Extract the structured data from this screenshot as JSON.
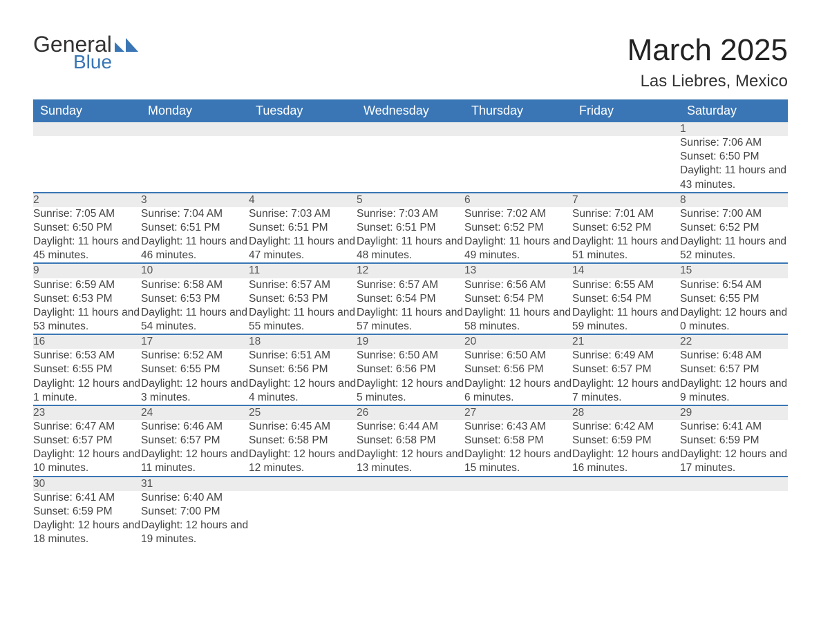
{
  "logo": {
    "text_top": "General",
    "text_bottom": "Blue"
  },
  "title": "March 2025",
  "location": "Las Liebres, Mexico",
  "colors": {
    "header_bg": "#3a76b5",
    "header_text": "#ffffff",
    "daynum_bg": "#ececec",
    "row_border": "#3a76b5",
    "text": "#444444"
  },
  "fonts": {
    "title_size": 44,
    "location_size": 24,
    "header_size": 18,
    "daynum_size": 18,
    "body_size": 15.5
  },
  "day_headers": [
    "Sunday",
    "Monday",
    "Tuesday",
    "Wednesday",
    "Thursday",
    "Friday",
    "Saturday"
  ],
  "weeks": [
    [
      null,
      null,
      null,
      null,
      null,
      null,
      {
        "n": "1",
        "sunrise": "7:06 AM",
        "sunset": "6:50 PM",
        "daylight": "11 hours and 43 minutes."
      }
    ],
    [
      {
        "n": "2",
        "sunrise": "7:05 AM",
        "sunset": "6:50 PM",
        "daylight": "11 hours and 45 minutes."
      },
      {
        "n": "3",
        "sunrise": "7:04 AM",
        "sunset": "6:51 PM",
        "daylight": "11 hours and 46 minutes."
      },
      {
        "n": "4",
        "sunrise": "7:03 AM",
        "sunset": "6:51 PM",
        "daylight": "11 hours and 47 minutes."
      },
      {
        "n": "5",
        "sunrise": "7:03 AM",
        "sunset": "6:51 PM",
        "daylight": "11 hours and 48 minutes."
      },
      {
        "n": "6",
        "sunrise": "7:02 AM",
        "sunset": "6:52 PM",
        "daylight": "11 hours and 49 minutes."
      },
      {
        "n": "7",
        "sunrise": "7:01 AM",
        "sunset": "6:52 PM",
        "daylight": "11 hours and 51 minutes."
      },
      {
        "n": "8",
        "sunrise": "7:00 AM",
        "sunset": "6:52 PM",
        "daylight": "11 hours and 52 minutes."
      }
    ],
    [
      {
        "n": "9",
        "sunrise": "6:59 AM",
        "sunset": "6:53 PM",
        "daylight": "11 hours and 53 minutes."
      },
      {
        "n": "10",
        "sunrise": "6:58 AM",
        "sunset": "6:53 PM",
        "daylight": "11 hours and 54 minutes."
      },
      {
        "n": "11",
        "sunrise": "6:57 AM",
        "sunset": "6:53 PM",
        "daylight": "11 hours and 55 minutes."
      },
      {
        "n": "12",
        "sunrise": "6:57 AM",
        "sunset": "6:54 PM",
        "daylight": "11 hours and 57 minutes."
      },
      {
        "n": "13",
        "sunrise": "6:56 AM",
        "sunset": "6:54 PM",
        "daylight": "11 hours and 58 minutes."
      },
      {
        "n": "14",
        "sunrise": "6:55 AM",
        "sunset": "6:54 PM",
        "daylight": "11 hours and 59 minutes."
      },
      {
        "n": "15",
        "sunrise": "6:54 AM",
        "sunset": "6:55 PM",
        "daylight": "12 hours and 0 minutes."
      }
    ],
    [
      {
        "n": "16",
        "sunrise": "6:53 AM",
        "sunset": "6:55 PM",
        "daylight": "12 hours and 1 minute."
      },
      {
        "n": "17",
        "sunrise": "6:52 AM",
        "sunset": "6:55 PM",
        "daylight": "12 hours and 3 minutes."
      },
      {
        "n": "18",
        "sunrise": "6:51 AM",
        "sunset": "6:56 PM",
        "daylight": "12 hours and 4 minutes."
      },
      {
        "n": "19",
        "sunrise": "6:50 AM",
        "sunset": "6:56 PM",
        "daylight": "12 hours and 5 minutes."
      },
      {
        "n": "20",
        "sunrise": "6:50 AM",
        "sunset": "6:56 PM",
        "daylight": "12 hours and 6 minutes."
      },
      {
        "n": "21",
        "sunrise": "6:49 AM",
        "sunset": "6:57 PM",
        "daylight": "12 hours and 7 minutes."
      },
      {
        "n": "22",
        "sunrise": "6:48 AM",
        "sunset": "6:57 PM",
        "daylight": "12 hours and 9 minutes."
      }
    ],
    [
      {
        "n": "23",
        "sunrise": "6:47 AM",
        "sunset": "6:57 PM",
        "daylight": "12 hours and 10 minutes."
      },
      {
        "n": "24",
        "sunrise": "6:46 AM",
        "sunset": "6:57 PM",
        "daylight": "12 hours and 11 minutes."
      },
      {
        "n": "25",
        "sunrise": "6:45 AM",
        "sunset": "6:58 PM",
        "daylight": "12 hours and 12 minutes."
      },
      {
        "n": "26",
        "sunrise": "6:44 AM",
        "sunset": "6:58 PM",
        "daylight": "12 hours and 13 minutes."
      },
      {
        "n": "27",
        "sunrise": "6:43 AM",
        "sunset": "6:58 PM",
        "daylight": "12 hours and 15 minutes."
      },
      {
        "n": "28",
        "sunrise": "6:42 AM",
        "sunset": "6:59 PM",
        "daylight": "12 hours and 16 minutes."
      },
      {
        "n": "29",
        "sunrise": "6:41 AM",
        "sunset": "6:59 PM",
        "daylight": "12 hours and 17 minutes."
      }
    ],
    [
      {
        "n": "30",
        "sunrise": "6:41 AM",
        "sunset": "6:59 PM",
        "daylight": "12 hours and 18 minutes."
      },
      {
        "n": "31",
        "sunrise": "6:40 AM",
        "sunset": "7:00 PM",
        "daylight": "12 hours and 19 minutes."
      },
      null,
      null,
      null,
      null,
      null
    ]
  ],
  "labels": {
    "sunrise": "Sunrise:",
    "sunset": "Sunset:",
    "daylight": "Daylight:"
  }
}
